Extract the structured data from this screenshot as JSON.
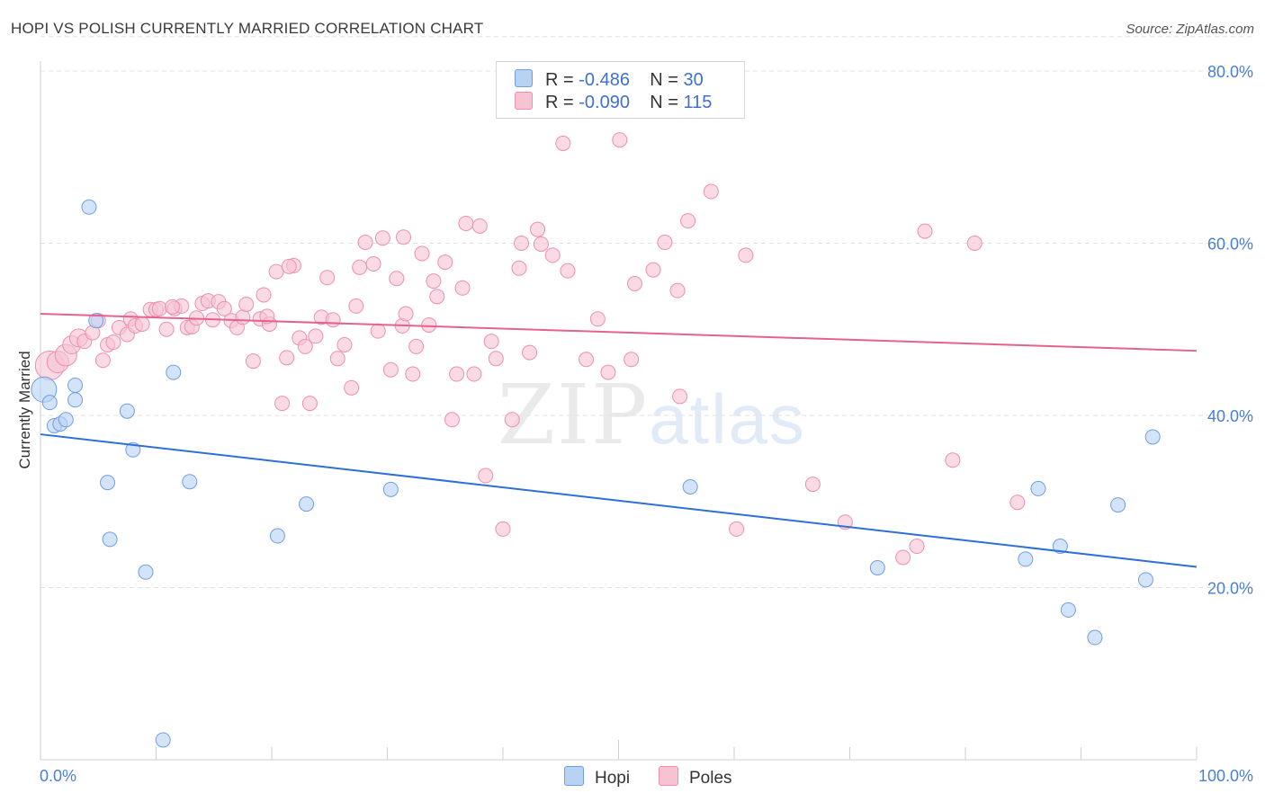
{
  "header": {
    "title": "HOPI VS POLISH CURRENTLY MARRIED CORRELATION CHART",
    "source": "Source: ZipAtlas.com"
  },
  "legend": {
    "rows": [
      {
        "r_label": "R =",
        "r_value": "-0.486",
        "n_label": "N =",
        "n_value": "30"
      },
      {
        "r_label": "R =",
        "r_value": "-0.090",
        "n_label": "N =",
        "n_value": "115"
      }
    ]
  },
  "bottom_legend": {
    "hopi": "Hopi",
    "poles": "Poles"
  },
  "watermark": {
    "zip": "ZIP",
    "atlas": "atlas"
  },
  "colors": {
    "hopi_fill": "#b8d2f3",
    "hopi_stroke": "#6f9ee6",
    "hopi_line": "#2e6fd6",
    "poles_fill": "#f7c3d3",
    "poles_stroke": "#ee8fae",
    "poles_line": "#e4628e",
    "tick_text": "#4a7fd4"
  },
  "chart_data": {
    "type": "scatter",
    "title": "HOPI VS POLISH CURRENTLY MARRIED CORRELATION CHART",
    "xlabel": "",
    "ylabel": "Currently Married",
    "xlim": [
      0,
      100
    ],
    "ylim": [
      0,
      84
    ],
    "x_tick_labels": [
      "0.0%",
      "100.0%"
    ],
    "y_ticks": [
      20,
      40,
      60,
      80
    ],
    "y_tick_labels": [
      "20.0%",
      "40.0%",
      "60.0%",
      "80.0%"
    ],
    "grid": true,
    "legend_position": "top-center",
    "series": [
      {
        "name": "Hopi",
        "R": -0.486,
        "N": 30,
        "trend": {
          "x": [
            0,
            100
          ],
          "y": [
            37.8,
            22.4
          ]
        },
        "points": [
          [
            0.3,
            43.0,
            14
          ],
          [
            0.8,
            41.5,
            8
          ],
          [
            1.2,
            38.8,
            8
          ],
          [
            1.7,
            39.0,
            8
          ],
          [
            2.2,
            39.5,
            8
          ],
          [
            3.0,
            43.5,
            8
          ],
          [
            3.0,
            41.8,
            8
          ],
          [
            4.2,
            64.2,
            8
          ],
          [
            4.8,
            51.0,
            8
          ],
          [
            5.8,
            32.2,
            8
          ],
          [
            6.0,
            25.6,
            8
          ],
          [
            7.5,
            40.5,
            8
          ],
          [
            8.0,
            36.0,
            8
          ],
          [
            9.1,
            21.8,
            8
          ],
          [
            10.6,
            2.3,
            8
          ],
          [
            11.5,
            45.0,
            8
          ],
          [
            12.9,
            32.3,
            8
          ],
          [
            20.5,
            26.0,
            8
          ],
          [
            23.0,
            29.7,
            8
          ],
          [
            30.3,
            31.4,
            8
          ],
          [
            56.2,
            31.7,
            8
          ],
          [
            72.4,
            22.3,
            8
          ],
          [
            85.2,
            23.3,
            8
          ],
          [
            86.3,
            31.5,
            8
          ],
          [
            88.2,
            24.8,
            8
          ],
          [
            88.9,
            17.4,
            8
          ],
          [
            91.2,
            14.2,
            8
          ],
          [
            93.2,
            29.6,
            8
          ],
          [
            95.6,
            20.9,
            8
          ],
          [
            96.2,
            37.5,
            8
          ]
        ]
      },
      {
        "name": "Poles",
        "R": -0.09,
        "N": 115,
        "trend": {
          "x": [
            0,
            100
          ],
          "y": [
            51.8,
            47.5
          ]
        },
        "points": [
          [
            0.8,
            45.8,
            16
          ],
          [
            1.5,
            46.2,
            12
          ],
          [
            2.2,
            47.0,
            12
          ],
          [
            2.7,
            48.2,
            10
          ],
          [
            3.3,
            49.0,
            10
          ],
          [
            3.8,
            48.6,
            8
          ],
          [
            4.5,
            49.6,
            8
          ],
          [
            5.0,
            51.0,
            8
          ],
          [
            5.4,
            46.4,
            8
          ],
          [
            5.8,
            48.2,
            8
          ],
          [
            6.3,
            48.5,
            8
          ],
          [
            6.8,
            50.2,
            8
          ],
          [
            7.5,
            49.4,
            8
          ],
          [
            7.8,
            51.2,
            8
          ],
          [
            8.2,
            50.4,
            8
          ],
          [
            8.8,
            50.6,
            8
          ],
          [
            9.5,
            52.3,
            8
          ],
          [
            10.0,
            52.3,
            8
          ],
          [
            10.3,
            52.4,
            8
          ],
          [
            10.9,
            50.0,
            8
          ],
          [
            11.6,
            52.4,
            8
          ],
          [
            12.2,
            52.7,
            8
          ],
          [
            12.7,
            50.2,
            8
          ],
          [
            13.1,
            50.3,
            8
          ],
          [
            13.5,
            51.3,
            8
          ],
          [
            14.0,
            53.0,
            8
          ],
          [
            14.5,
            53.3,
            8
          ],
          [
            14.9,
            51.1,
            8
          ],
          [
            15.4,
            53.2,
            8
          ],
          [
            15.9,
            52.4,
            8
          ],
          [
            16.5,
            51.0,
            8
          ],
          [
            17.0,
            50.2,
            8
          ],
          [
            17.5,
            51.4,
            8
          ],
          [
            17.8,
            52.9,
            8
          ],
          [
            18.4,
            46.3,
            8
          ],
          [
            19.0,
            51.2,
            8
          ],
          [
            19.3,
            54.0,
            8
          ],
          [
            19.8,
            50.6,
            8
          ],
          [
            20.4,
            56.7,
            8
          ],
          [
            20.9,
            41.4,
            8
          ],
          [
            21.3,
            46.7,
            8
          ],
          [
            21.9,
            57.4,
            8
          ],
          [
            22.4,
            49.0,
            8
          ],
          [
            22.9,
            48.0,
            8
          ],
          [
            23.3,
            41.4,
            8
          ],
          [
            23.8,
            49.2,
            8
          ],
          [
            24.3,
            51.4,
            8
          ],
          [
            24.8,
            56.0,
            8
          ],
          [
            25.3,
            51.1,
            8
          ],
          [
            25.7,
            46.6,
            8
          ],
          [
            26.3,
            48.2,
            8
          ],
          [
            26.9,
            43.2,
            8
          ],
          [
            27.3,
            52.7,
            8
          ],
          [
            27.6,
            57.2,
            8
          ],
          [
            28.1,
            60.1,
            8
          ],
          [
            28.8,
            57.6,
            8
          ],
          [
            29.2,
            49.8,
            8
          ],
          [
            29.6,
            60.6,
            8
          ],
          [
            30.3,
            45.3,
            8
          ],
          [
            30.8,
            55.9,
            8
          ],
          [
            31.3,
            50.4,
            8
          ],
          [
            31.6,
            51.8,
            8
          ],
          [
            32.2,
            44.8,
            8
          ],
          [
            32.5,
            48.0,
            8
          ],
          [
            33.0,
            58.8,
            8
          ],
          [
            33.6,
            50.5,
            8
          ],
          [
            34.0,
            55.6,
            8
          ],
          [
            34.3,
            53.8,
            8
          ],
          [
            35.0,
            57.8,
            8
          ],
          [
            35.6,
            39.5,
            8
          ],
          [
            36.0,
            44.8,
            8
          ],
          [
            36.5,
            54.8,
            8
          ],
          [
            36.8,
            62.3,
            8
          ],
          [
            37.5,
            44.8,
            8
          ],
          [
            38.0,
            62.0,
            8
          ],
          [
            38.5,
            33.0,
            8
          ],
          [
            39.0,
            48.6,
            8
          ],
          [
            39.4,
            46.6,
            8
          ],
          [
            40.0,
            26.8,
            8
          ],
          [
            40.8,
            39.5,
            8
          ],
          [
            41.4,
            57.1,
            8
          ],
          [
            41.6,
            60.0,
            8
          ],
          [
            42.3,
            47.3,
            8
          ],
          [
            43.0,
            61.6,
            8
          ],
          [
            43.3,
            59.9,
            8
          ],
          [
            44.3,
            58.6,
            8
          ],
          [
            45.2,
            71.6,
            8
          ],
          [
            45.6,
            56.8,
            8
          ],
          [
            46.3,
            78.3,
            8
          ],
          [
            47.2,
            46.5,
            8
          ],
          [
            49.1,
            45.0,
            8
          ],
          [
            50.1,
            72.0,
            8
          ],
          [
            51.1,
            46.5,
            8
          ],
          [
            51.4,
            55.3,
            8
          ],
          [
            53.0,
            56.9,
            8
          ],
          [
            54.0,
            60.1,
            8
          ],
          [
            55.1,
            54.5,
            8
          ],
          [
            55.3,
            42.2,
            8
          ],
          [
            56.0,
            62.6,
            8
          ],
          [
            58.0,
            66.0,
            8
          ],
          [
            60.2,
            26.8,
            8
          ],
          [
            61.0,
            58.6,
            8
          ],
          [
            66.8,
            32.0,
            8
          ],
          [
            69.6,
            27.6,
            8
          ],
          [
            74.6,
            23.5,
            8
          ],
          [
            75.8,
            24.8,
            8
          ],
          [
            76.5,
            61.4,
            8
          ],
          [
            78.9,
            34.8,
            8
          ],
          [
            80.8,
            60.0,
            8
          ],
          [
            84.5,
            29.9,
            8
          ],
          [
            48.2,
            51.2,
            8
          ],
          [
            31.4,
            60.7,
            8
          ],
          [
            11.4,
            52.6,
            8
          ],
          [
            21.5,
            57.3,
            8
          ],
          [
            19.6,
            51.5,
            8
          ]
        ]
      }
    ]
  }
}
